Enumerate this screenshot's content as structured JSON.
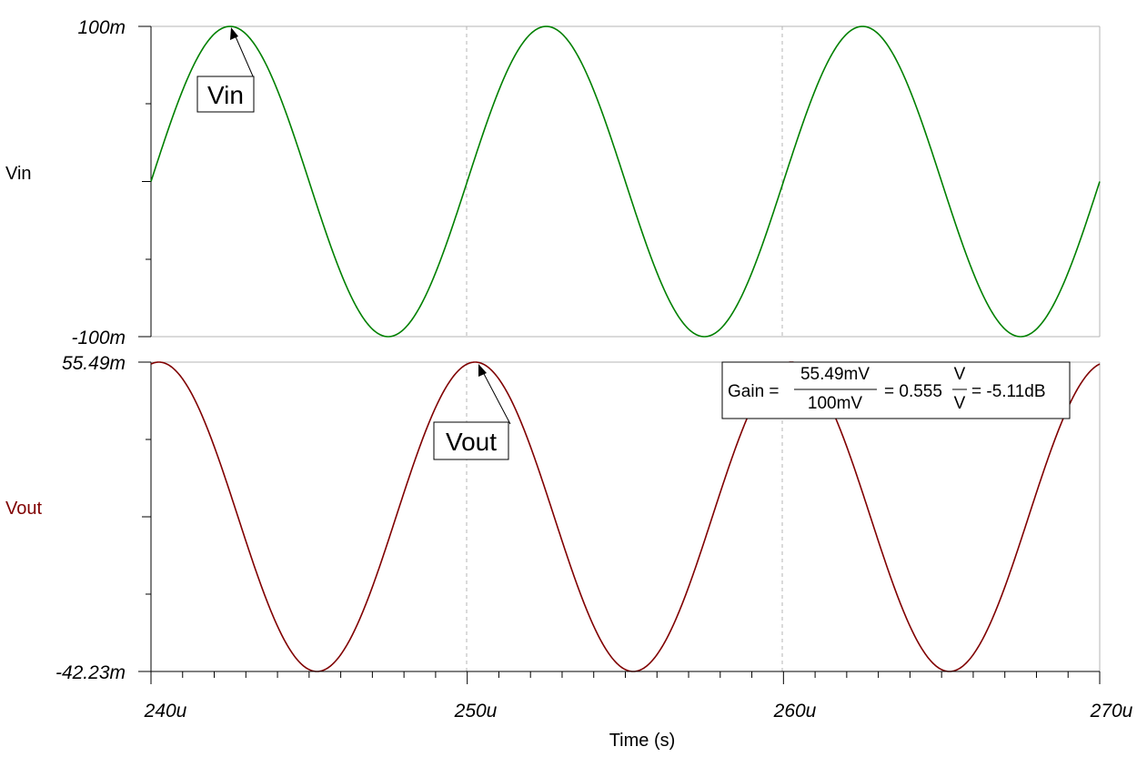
{
  "colors": {
    "vin": "#008000",
    "vout": "#800000",
    "grid": "#b4b4b4",
    "axis": "#000000"
  },
  "chart_data": {
    "type": "line",
    "title": "",
    "xlabel": "Time (s)",
    "x_range": [
      240,
      270
    ],
    "x_unit_suffix": "u",
    "x_ticks": [
      "240u",
      "250u",
      "260u",
      "270u"
    ],
    "x_tick_values": [
      240,
      250,
      260,
      270
    ],
    "panels": [
      {
        "ylabel": "Vin",
        "color": "#008000",
        "ylim": [
          -100,
          100
        ],
        "y_ticks": [
          "100m",
          "-100m"
        ],
        "series": [
          {
            "name": "Vin",
            "kind": "sine",
            "amplitude": 100,
            "offset": 0,
            "period": 10,
            "peak_at": 242.5
          }
        ],
        "callout": {
          "text": "Vin",
          "point": [
            242.5,
            100
          ]
        }
      },
      {
        "ylabel": "Vout",
        "color": "#800000",
        "ylim": [
          -42.23,
          55.49
        ],
        "y_ticks": [
          "55.49m",
          "-42.23m"
        ],
        "series": [
          {
            "name": "Vout",
            "kind": "sine",
            "amplitude": 48.86,
            "offset": 6.63,
            "period": 10,
            "peak_at": 250.25
          }
        ],
        "callout": {
          "text": "Vout",
          "point": [
            250.25,
            55.49
          ]
        }
      }
    ]
  },
  "gain_box": {
    "prefix": "Gain =",
    "num1": "55.49mV",
    "den1": "100mV",
    "mid": "= 0.555",
    "num2": "V",
    "den2": "V",
    "suffix": "= -5.11dB"
  }
}
